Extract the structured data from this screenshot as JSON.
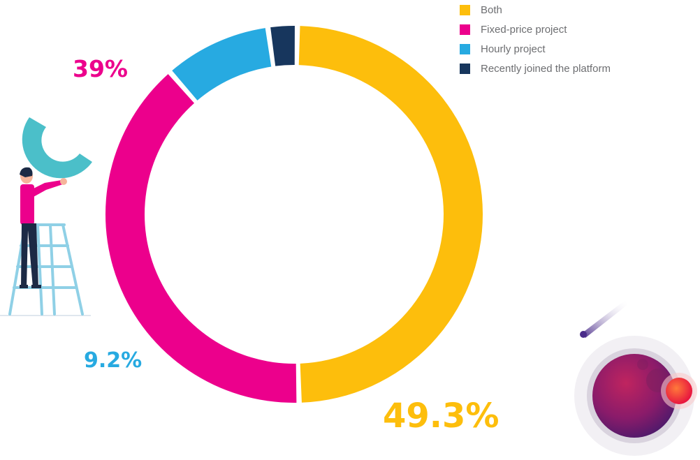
{
  "chart_data": {
    "type": "pie",
    "variant": "donut",
    "title": "",
    "categories": [
      "Both",
      "Fixed-price project",
      "Hourly project",
      "Recently joined the platform"
    ],
    "values": [
      49.3,
      39,
      9.2,
      2.5
    ],
    "data_labels": [
      "49.3%",
      "39%",
      "9.2%",
      ""
    ],
    "colors": [
      "#fdbe0c",
      "#ec008c",
      "#27aae1",
      "#17365d"
    ],
    "legend": {
      "placement": "top-right"
    }
  },
  "legend": {
    "items": [
      {
        "label": "Both",
        "color": "#fdbe0c"
      },
      {
        "label": "Fixed-price project",
        "color": "#ec008c"
      },
      {
        "label": "Hourly project",
        "color": "#27aae1"
      },
      {
        "label": "Recently joined the platform",
        "color": "#17365d"
      }
    ]
  },
  "decorations": {
    "left": "person-on-ladder-holding-ring-illustration",
    "bottom_right": "planet-with-comet-illustration"
  }
}
